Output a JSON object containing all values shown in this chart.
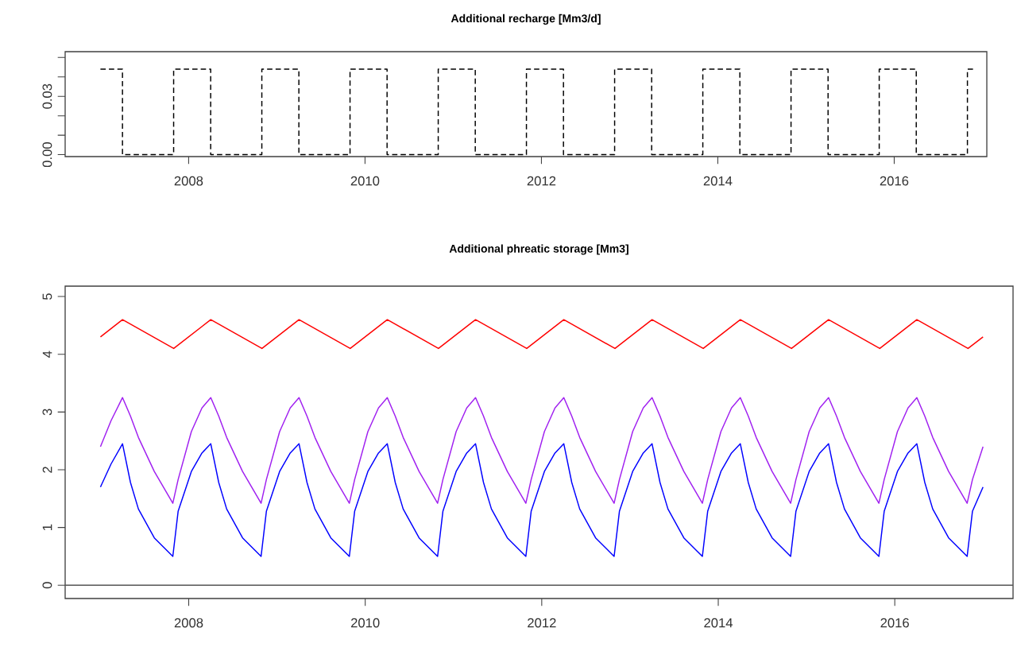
{
  "chart_data": [
    {
      "type": "step",
      "title": "Additional recharge [Mm3/d]",
      "color": "#000000",
      "line_style": "dashed",
      "x": [
        2007,
        2007.25,
        2007.83,
        2008.25,
        2008.83,
        2009.25,
        2009.83,
        2010.25,
        2010.83,
        2011.25,
        2011.83,
        2012.25,
        2012.83,
        2013.25,
        2013.83,
        2014.25,
        2014.83,
        2015.25,
        2015.83,
        2016.25,
        2016.83,
        2016.92
      ],
      "values": [
        0.044,
        0,
        0.044,
        0,
        0.044,
        0,
        0.044,
        0,
        0.044,
        0,
        0.044,
        0,
        0.044,
        0,
        0.044,
        0,
        0.044,
        0,
        0.044,
        0,
        0.044,
        0.044
      ],
      "xlim": [
        2006.6,
        2017.05
      ],
      "ylim": [
        -0.001,
        0.053
      ],
      "xticks": [
        2008,
        2010,
        2012,
        2014,
        2016
      ],
      "yticks": [
        {
          "value": 0,
          "label": "0.00"
        },
        {
          "value": 0.01,
          "label": null
        },
        {
          "value": 0.02,
          "label": null
        },
        {
          "value": 0.03,
          "label": "0.03"
        },
        {
          "value": 0.04,
          "label": null
        },
        {
          "value": 0.05,
          "label": null
        }
      ]
    },
    {
      "type": "line",
      "title": "Additional phreatic storage [Mm3]",
      "series": [
        {
          "color": "#ff0000",
          "x": [
            2007,
            2007.25,
            2007.83,
            2008.25,
            2008.83,
            2009.25,
            2009.83,
            2010.25,
            2010.83,
            2011.25,
            2011.83,
            2012.25,
            2012.83,
            2013.25,
            2013.83,
            2014.25,
            2014.83,
            2015.25,
            2015.83,
            2016.25,
            2016.83,
            2017
          ],
          "values": [
            4.3,
            4.6,
            4.1,
            4.6,
            4.1,
            4.6,
            4.1,
            4.6,
            4.1,
            4.6,
            4.1,
            4.6,
            4.1,
            4.6,
            4.1,
            4.6,
            4.1,
            4.6,
            4.1,
            4.6,
            4.1,
            4.3
          ]
        },
        {
          "color": "#a020f0",
          "x": [
            2007,
            2007.12,
            2007.25,
            2007.34,
            2007.43,
            2007.61,
            2007.82,
            2007.88,
            2008.03,
            2008.15,
            2008.25,
            2008.34,
            2008.43,
            2008.61,
            2008.82,
            2008.88,
            2009.03,
            2009.15,
            2009.25,
            2009.34,
            2009.43,
            2009.61,
            2009.82,
            2009.88,
            2010.03,
            2010.15,
            2010.25,
            2010.34,
            2010.43,
            2010.61,
            2010.82,
            2010.88,
            2011.03,
            2011.15,
            2011.25,
            2011.34,
            2011.43,
            2011.61,
            2011.82,
            2011.88,
            2012.03,
            2012.15,
            2012.25,
            2012.34,
            2012.43,
            2012.61,
            2012.82,
            2012.88,
            2013.03,
            2013.15,
            2013.25,
            2013.34,
            2013.43,
            2013.61,
            2013.82,
            2013.88,
            2014.03,
            2014.15,
            2014.25,
            2014.34,
            2014.43,
            2014.61,
            2014.82,
            2014.88,
            2015.03,
            2015.15,
            2015.25,
            2015.34,
            2015.43,
            2015.61,
            2015.82,
            2015.88,
            2016.03,
            2016.15,
            2016.25,
            2016.34,
            2016.43,
            2016.61,
            2016.82,
            2016.88,
            2017
          ],
          "values": [
            2.4,
            2.85,
            3.25,
            2.93,
            2.56,
            1.97,
            1.42,
            1.83,
            2.66,
            3.07,
            3.25,
            2.93,
            2.56,
            1.97,
            1.42,
            1.83,
            2.66,
            3.07,
            3.25,
            2.93,
            2.56,
            1.97,
            1.42,
            1.83,
            2.66,
            3.07,
            3.25,
            2.93,
            2.56,
            1.97,
            1.42,
            1.83,
            2.66,
            3.07,
            3.25,
            2.93,
            2.56,
            1.97,
            1.42,
            1.83,
            2.66,
            3.07,
            3.25,
            2.93,
            2.56,
            1.97,
            1.42,
            1.83,
            2.66,
            3.07,
            3.25,
            2.93,
            2.56,
            1.97,
            1.42,
            1.83,
            2.66,
            3.07,
            3.25,
            2.93,
            2.56,
            1.97,
            1.42,
            1.83,
            2.66,
            3.07,
            3.25,
            2.93,
            2.56,
            1.97,
            1.42,
            1.83,
            2.66,
            3.07,
            3.25,
            2.93,
            2.56,
            1.97,
            1.42,
            1.83,
            2.4
          ]
        },
        {
          "color": "#0000ff",
          "x": [
            2007,
            2007.12,
            2007.25,
            2007.34,
            2007.43,
            2007.61,
            2007.82,
            2007.88,
            2008.03,
            2008.15,
            2008.25,
            2008.34,
            2008.43,
            2008.61,
            2008.82,
            2008.88,
            2009.03,
            2009.15,
            2009.25,
            2009.34,
            2009.43,
            2009.61,
            2009.82,
            2009.88,
            2010.03,
            2010.15,
            2010.25,
            2010.34,
            2010.43,
            2010.61,
            2010.82,
            2010.88,
            2011.03,
            2011.15,
            2011.25,
            2011.34,
            2011.43,
            2011.61,
            2011.82,
            2011.88,
            2012.03,
            2012.15,
            2012.25,
            2012.34,
            2012.43,
            2012.61,
            2012.82,
            2012.88,
            2013.03,
            2013.15,
            2013.25,
            2013.34,
            2013.43,
            2013.61,
            2013.82,
            2013.88,
            2014.03,
            2014.15,
            2014.25,
            2014.34,
            2014.43,
            2014.61,
            2014.82,
            2014.88,
            2015.03,
            2015.15,
            2015.25,
            2015.34,
            2015.43,
            2015.61,
            2015.82,
            2015.88,
            2016.03,
            2016.15,
            2016.25,
            2016.34,
            2016.43,
            2016.61,
            2016.82,
            2016.88,
            2017
          ],
          "values": [
            1.7,
            2.1,
            2.45,
            1.78,
            1.32,
            0.82,
            0.5,
            1.28,
            1.97,
            2.29,
            2.45,
            1.78,
            1.32,
            0.82,
            0.5,
            1.28,
            1.97,
            2.29,
            2.45,
            1.78,
            1.32,
            0.82,
            0.5,
            1.28,
            1.97,
            2.29,
            2.45,
            1.78,
            1.32,
            0.82,
            0.5,
            1.28,
            1.97,
            2.29,
            2.45,
            1.78,
            1.32,
            0.82,
            0.5,
            1.28,
            1.97,
            2.29,
            2.45,
            1.78,
            1.32,
            0.82,
            0.5,
            1.28,
            1.97,
            2.29,
            2.45,
            1.78,
            1.32,
            0.82,
            0.5,
            1.28,
            1.97,
            2.29,
            2.45,
            1.78,
            1.32,
            0.82,
            0.5,
            1.28,
            1.97,
            2.29,
            2.45,
            1.78,
            1.32,
            0.82,
            0.5,
            1.28,
            1.97,
            2.29,
            2.45,
            1.78,
            1.32,
            0.82,
            0.5,
            1.28,
            1.7
          ]
        }
      ],
      "xlim": [
        2006.6,
        2017.34
      ],
      "ylim": [
        -0.23,
        5.18
      ],
      "xticks": [
        2008,
        2010,
        2012,
        2014,
        2016
      ],
      "yticks": [
        0,
        1,
        2,
        3,
        4,
        5
      ],
      "ref_lines": [
        {
          "axis": "y",
          "value": 0,
          "color": "#555555"
        }
      ]
    }
  ]
}
